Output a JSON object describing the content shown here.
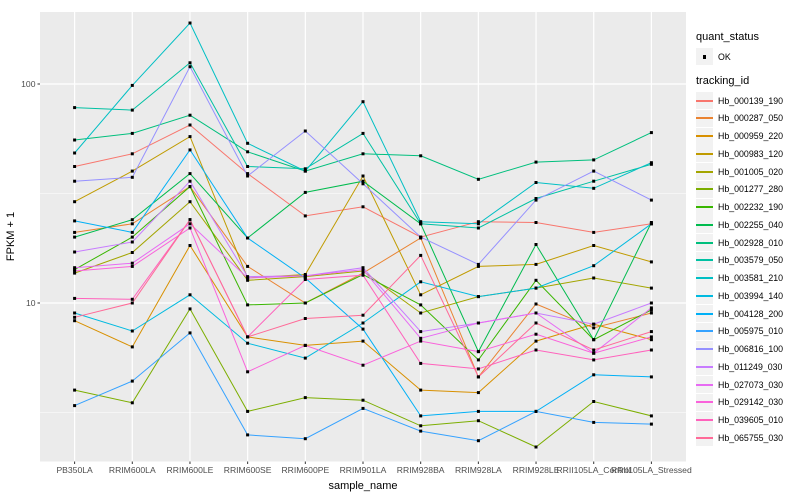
{
  "figure": {
    "panel": {
      "background": "#EBEBEB",
      "gridline_color": "#FFFFFF",
      "tick_color": "#333333",
      "tick_label_color": "#4D4D4D"
    },
    "legend": {
      "quant_status": {
        "title": "quant_status",
        "items": [
          {
            "label": "OK",
            "shape": "black-square-point"
          }
        ]
      },
      "tracking_id": {
        "title": "tracking_id"
      }
    }
  },
  "chart_data": {
    "type": "line",
    "title": "",
    "xlabel": "sample_name",
    "ylabel": "FPKM + 1",
    "yscale": "log10",
    "ylim": [
      1.9,
      215
    ],
    "yticks": [
      10,
      100
    ],
    "ytick_labels": [
      "10",
      "100"
    ],
    "y_minor_gridlines": [
      3.1623,
      31.623
    ],
    "grid": "on",
    "legend_position": "right",
    "point_marker": "small-black-square",
    "x": [
      "PB350LA",
      "RRIM600LA",
      "RRIM600LE",
      "RRIM600SE",
      "RRIM600PE",
      "RRIM901LA",
      "RRIM928BA",
      "RRIM928LA",
      "RRIM928LE",
      "RRII105LA_Control",
      "RRII105LA_Stressed"
    ],
    "series": [
      {
        "name": "Hb_000139_190",
        "color": "#F8766D",
        "quant_status": "OK",
        "values": [
          42,
          48,
          65,
          39,
          25,
          27.5,
          20,
          23.5,
          23.3,
          21,
          23
        ]
      },
      {
        "name": "Hb_000287_050",
        "color": "#EA8331",
        "quant_status": "OK",
        "values": [
          21,
          23,
          34,
          14.7,
          10,
          13.7,
          19.8,
          4.6,
          9.9,
          7.7,
          9.0
        ]
      },
      {
        "name": "Hb_000959_220",
        "color": "#D89000",
        "quant_status": "OK",
        "values": [
          8.3,
          6.3,
          18.3,
          7.0,
          6.4,
          6.7,
          4.0,
          3.9,
          6.7,
          8.0,
          6.8
        ]
      },
      {
        "name": "Hb_000983_120",
        "color": "#C09B00",
        "quant_status": "OK",
        "values": [
          29,
          40,
          57.5,
          13,
          13.5,
          38,
          10.9,
          14.7,
          15,
          18.3,
          15.4
        ]
      },
      {
        "name": "Hb_001005_020",
        "color": "#A3A500",
        "quant_status": "OK",
        "values": [
          13.7,
          17,
          29,
          12.7,
          13.2,
          14,
          9.0,
          10.7,
          11.7,
          13,
          11.7
        ]
      },
      {
        "name": "Hb_001277_280",
        "color": "#7CAE00",
        "quant_status": "OK",
        "values": [
          4.0,
          3.5,
          9.4,
          3.2,
          3.7,
          3.6,
          2.75,
          2.9,
          2.2,
          3.55,
          3.05
        ]
      },
      {
        "name": "Hb_002232_190",
        "color": "#39B600",
        "quant_status": "OK",
        "values": [
          14.2,
          20,
          34,
          9.8,
          10,
          13.5,
          9.8,
          5.5,
          12.7,
          6.8,
          9.3
        ]
      },
      {
        "name": "Hb_002255_040",
        "color": "#00BB4E",
        "quant_status": "OK",
        "values": [
          20,
          24,
          39,
          19.8,
          32,
          36,
          23,
          6.0,
          18.5,
          6.8,
          23.3
        ]
      },
      {
        "name": "Hb_002928_010",
        "color": "#00BF7D",
        "quant_status": "OK",
        "values": [
          55.5,
          59.5,
          72,
          49,
          40,
          48,
          47,
          36.7,
          44,
          45,
          60
        ]
      },
      {
        "name": "Hb_003579_050",
        "color": "#00C1A3",
        "quant_status": "OK",
        "values": [
          78,
          76,
          125,
          42,
          41,
          59.5,
          23,
          22,
          30,
          36,
          43
        ]
      },
      {
        "name": "Hb_003581_210",
        "color": "#00BFC4",
        "quant_status": "OK",
        "values": [
          48.4,
          98.5,
          190,
          53.6,
          40,
          83,
          23.5,
          23,
          35.5,
          33.4,
          43.7
        ]
      },
      {
        "name": "Hb_003994_140",
        "color": "#00BAE0",
        "quant_status": "OK",
        "values": [
          9.0,
          7.45,
          10.9,
          6.55,
          5.6,
          8.1,
          12.5,
          10.7,
          11.7,
          14.8,
          23
        ]
      },
      {
        "name": "Hb_004128_200",
        "color": "#00B0F6",
        "quant_status": "OK",
        "values": [
          23.7,
          21,
          50,
          19.8,
          13,
          7.6,
          3.05,
          3.2,
          3.2,
          4.7,
          4.6
        ]
      },
      {
        "name": "Hb_005975_010",
        "color": "#35A2FF",
        "quant_status": "OK",
        "values": [
          3.4,
          4.4,
          7.3,
          2.5,
          2.4,
          3.3,
          2.6,
          2.35,
          3.2,
          2.85,
          2.8
        ]
      },
      {
        "name": "Hb_006816_100",
        "color": "#9590FF",
        "quant_status": "OK",
        "values": [
          36,
          37.5,
          120,
          38,
          61,
          35,
          20,
          15,
          29.5,
          40,
          29.5
        ]
      },
      {
        "name": "Hb_011249_030",
        "color": "#C77CFF",
        "quant_status": "OK",
        "values": [
          17.1,
          19,
          36,
          13.2,
          13.3,
          14.5,
          7.4,
          8.1,
          9.0,
          8.0,
          10
        ]
      },
      {
        "name": "Hb_027073_030",
        "color": "#E76BF3",
        "quant_status": "OK",
        "values": [
          14.5,
          15.2,
          23,
          13,
          13.3,
          14.2,
          6.9,
          8.1,
          9.0,
          5.9,
          9.5
        ]
      },
      {
        "name": "Hb_029142_030",
        "color": "#FA62DB",
        "quant_status": "OK",
        "values": [
          14.0,
          14.7,
          22,
          4.85,
          6.4,
          5.2,
          6.7,
          6.0,
          7.2,
          5.9,
          7.0
        ]
      },
      {
        "name": "Hb_039605_010",
        "color": "#FF62BC",
        "quant_status": "OK",
        "values": [
          10.5,
          10.4,
          24,
          7.0,
          12.8,
          13.4,
          5.3,
          5.0,
          6.1,
          5.5,
          6.1
        ]
      },
      {
        "name": "Hb_065755_030",
        "color": "#FF6A98",
        "quant_status": "OK",
        "values": [
          8.6,
          10,
          24,
          7.0,
          8.5,
          8.8,
          16.5,
          4.6,
          8.1,
          6.1,
          7.4
        ]
      }
    ]
  }
}
